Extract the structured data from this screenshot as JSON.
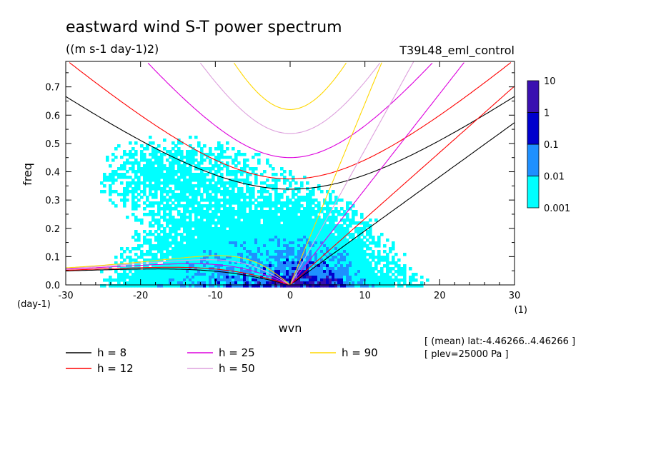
{
  "chart_data": {
    "type": "heatmap",
    "title": "eastward wind S-T power spectrum",
    "subtitle": "((m s-1 day-1)2)",
    "run_label": "T39L48_eml_control",
    "xlabel": "wvn",
    "ylabel": "freq",
    "x_unit": "(1)",
    "y_unit": "(day-1)",
    "xlim": [
      -30,
      30
    ],
    "ylim": [
      0,
      0.79
    ],
    "x_ticks": [
      -30,
      -20,
      -10,
      0,
      10,
      20,
      30
    ],
    "y_ticks": [
      0.0,
      0.1,
      0.2,
      0.3,
      0.4,
      0.5,
      0.6,
      0.7
    ],
    "x_tick_labels": [
      "-30",
      "-20",
      "-10",
      "0",
      "10",
      "20",
      "30"
    ],
    "y_tick_labels": [
      "0.0",
      "0.1",
      "0.2",
      "0.3",
      "0.4",
      "0.5",
      "0.6",
      "0.7"
    ],
    "colorbar": {
      "levels": [
        "0.001",
        "0.01",
        "0.1",
        "1",
        "10"
      ],
      "colors": [
        "#00ffff",
        "#1e90ff",
        "#0000cd",
        "#3a10b0"
      ]
    },
    "dispersion_curves": [
      {
        "label": "h =  8",
        "h": 8,
        "color": "#000000"
      },
      {
        "label": "h = 12",
        "h": 12,
        "color": "#ff0000"
      },
      {
        "label": "h = 25",
        "h": 25,
        "color": "#dd00dd"
      },
      {
        "label": "h = 50",
        "h": 50,
        "color": "#dda0dd"
      },
      {
        "label": "h = 90",
        "h": 90,
        "color": "#ffd700"
      }
    ],
    "annotation_lines": [
      "[ (mean) lat:-4.46266..4.46266 ]",
      "[ plev=25000 Pa ]"
    ]
  }
}
